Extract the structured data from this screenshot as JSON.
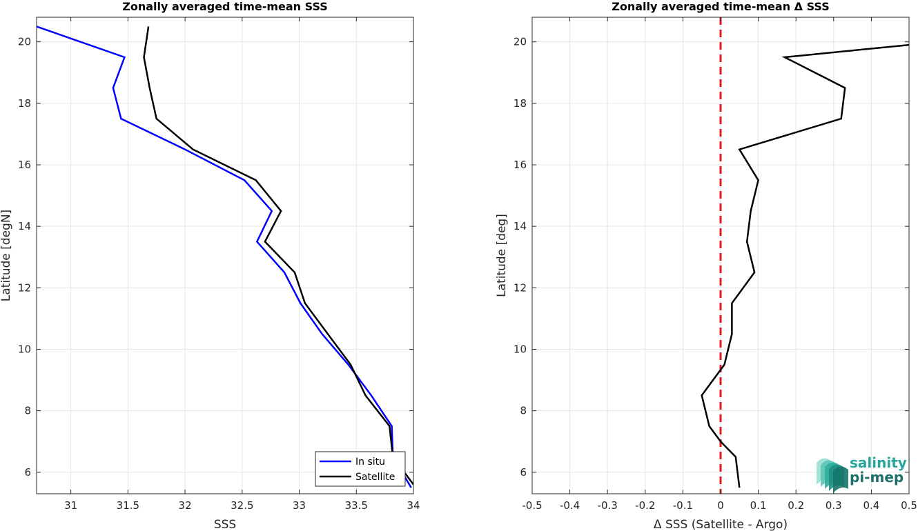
{
  "chart_data": [
    {
      "type": "line",
      "title": "Zonally averaged time-mean SSS",
      "xlabel": "SSS",
      "ylabel": "Latitude [degN]",
      "xlim": [
        30.7,
        34.0
      ],
      "ylim": [
        5.3,
        20.8
      ],
      "xticks": [
        31,
        31.5,
        32,
        32.5,
        33,
        33.5,
        34
      ],
      "xtick_labels": [
        "31",
        "31.5",
        "32",
        "32.5",
        "33",
        "33.5",
        "34"
      ],
      "yticks": [
        6,
        8,
        10,
        12,
        14,
        16,
        18,
        20
      ],
      "ytick_labels": [
        "6",
        "8",
        "10",
        "12",
        "14",
        "16",
        "18",
        "20"
      ],
      "grid": true,
      "legend": "bottom-right",
      "series": [
        {
          "name": "In situ",
          "color": "#0000ff",
          "points": [
            [
              30.7,
              20.5
            ],
            [
              31.47,
              19.5
            ],
            [
              31.37,
              18.5
            ],
            [
              31.44,
              17.5
            ],
            [
              32.0,
              16.5
            ],
            [
              32.52,
              15.5
            ],
            [
              32.76,
              14.5
            ],
            [
              32.63,
              13.5
            ],
            [
              32.87,
              12.5
            ],
            [
              33.01,
              11.5
            ],
            [
              33.2,
              10.5
            ],
            [
              33.43,
              9.5
            ],
            [
              33.63,
              8.5
            ],
            [
              33.81,
              7.5
            ],
            [
              33.82,
              6.5
            ],
            [
              33.98,
              5.5
            ]
          ]
        },
        {
          "name": "Satellite",
          "color": "#000000",
          "points": [
            [
              31.68,
              20.5
            ],
            [
              31.64,
              19.5
            ],
            [
              31.69,
              18.5
            ],
            [
              31.75,
              17.5
            ],
            [
              32.07,
              16.5
            ],
            [
              32.62,
              15.5
            ],
            [
              32.84,
              14.5
            ],
            [
              32.7,
              13.5
            ],
            [
              32.96,
              12.5
            ],
            [
              33.05,
              11.5
            ],
            [
              33.25,
              10.5
            ],
            [
              33.45,
              9.5
            ],
            [
              33.58,
              8.5
            ],
            [
              33.79,
              7.5
            ],
            [
              33.82,
              6.5
            ],
            [
              34.0,
              5.6
            ]
          ]
        }
      ]
    },
    {
      "type": "line",
      "title": "Zonally averaged time-mean Δ SSS",
      "xlabel": "Δ SSS (Satellite - Argo)",
      "ylabel": "Latitude [deg]",
      "xlim": [
        -0.5,
        0.5
      ],
      "ylim": [
        5.3,
        20.8
      ],
      "xticks": [
        -0.5,
        -0.4,
        -0.3,
        -0.2,
        -0.1,
        0,
        0.1,
        0.2,
        0.3,
        0.4,
        0.5
      ],
      "xtick_labels": [
        "-0.5",
        "-0.4",
        "-0.3",
        "-0.2",
        "-0.1",
        "0",
        "0.1",
        "0.2",
        "0.3",
        "0.4",
        "0.5"
      ],
      "yticks": [
        6,
        8,
        10,
        12,
        14,
        16,
        18,
        20
      ],
      "ytick_labels": [
        "6",
        "8",
        "10",
        "12",
        "14",
        "16",
        "18",
        "20"
      ],
      "grid": true,
      "reference_line": {
        "x": 0,
        "color": "#e31a1c",
        "style": "dashed"
      },
      "series": [
        {
          "color": "#000000",
          "points": [
            [
              0.5,
              19.9
            ],
            [
              0.17,
              19.5
            ],
            [
              0.33,
              18.5
            ],
            [
              0.32,
              17.5
            ],
            [
              0.05,
              16.5
            ],
            [
              0.1,
              15.5
            ],
            [
              0.08,
              14.5
            ],
            [
              0.07,
              13.5
            ],
            [
              0.09,
              12.5
            ],
            [
              0.03,
              11.5
            ],
            [
              0.03,
              10.5
            ],
            [
              0.01,
              9.5
            ],
            [
              -0.05,
              8.5
            ],
            [
              -0.03,
              7.5
            ],
            [
              0.0,
              7.0
            ],
            [
              0.04,
              6.5
            ],
            [
              0.05,
              5.5
            ]
          ]
        }
      ]
    }
  ],
  "logo": {
    "line1": "salinity",
    "line2": "pi-mep"
  }
}
